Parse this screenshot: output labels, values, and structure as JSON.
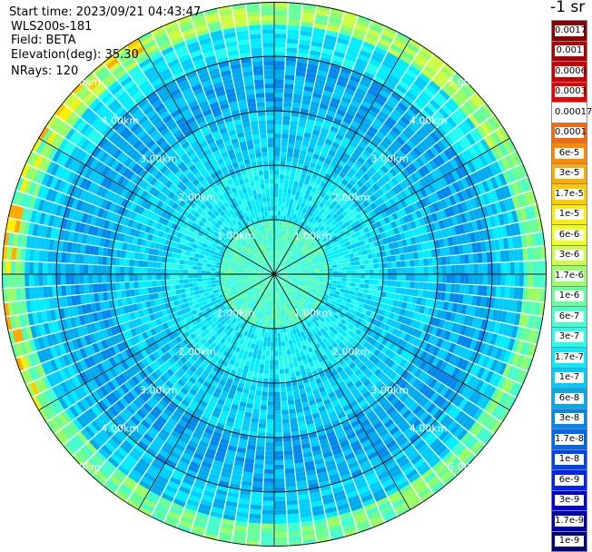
{
  "header": {
    "start_time": "Start time: 2023/09/21 04:43:47",
    "device": "WLS200s-181",
    "field": "Field: BETA",
    "elevation": "Elevation(deg): 35.30",
    "nrays": "NRays: 120"
  },
  "colorbar": {
    "unit": "-1 sr",
    "labels": [
      "0.0017",
      "0.001",
      "0.0006",
      "0.0003",
      "0.00017",
      "0.0001",
      "6e-5",
      "3e-5",
      "1.7e-5",
      "1e-5",
      "6e-6",
      "3e-6",
      "1.7e-6",
      "1e-6",
      "6e-7",
      "3e-7",
      "1.7e-7",
      "1e-7",
      "6e-8",
      "3e-8",
      "1.7e-8",
      "1e-8",
      "6e-9",
      "3e-9",
      "1.7e-9",
      "1e-9"
    ],
    "colors": [
      "#880000",
      "#aa0000",
      "#cc0000",
      "#ee0000",
      "#ffffff",
      "#ff6600",
      "#ff8800",
      "#ffaa00",
      "#ffcc00",
      "#ffee00",
      "#eeff22",
      "#ccff44",
      "#99ff66",
      "#66ff99",
      "#44ffcc",
      "#22ffee",
      "#00eeff",
      "#00ccff",
      "#00aaee",
      "#0088ee",
      "#0066ee",
      "#0044ee",
      "#0022ee",
      "#0000dd",
      "#0000aa",
      "#000077"
    ]
  },
  "chart_data": {
    "type": "heatmap",
    "projection": "polar-ppi",
    "field": "BETA",
    "nrays": 120,
    "max_range_km": 5.0,
    "range_ring_labels": [
      "1.00km",
      "2.00km",
      "3.00km",
      "4.00km",
      "5.00km"
    ],
    "azimuth_spokes_deg": [
      0,
      30,
      60,
      90,
      120,
      150,
      180,
      210,
      240,
      270,
      300,
      330
    ],
    "field_bands": [
      {
        "range_km": [
          0.0,
          1.0
        ],
        "dominant_level": "6e-7"
      },
      {
        "range_km": [
          1.0,
          2.0
        ],
        "dominant_level": "1.7e-7"
      },
      {
        "range_km": [
          2.0,
          3.0
        ],
        "dominant_level": "1e-7"
      },
      {
        "range_km": [
          3.0,
          4.0
        ],
        "dominant_level": "6e-8"
      },
      {
        "range_km": [
          4.0,
          4.6
        ],
        "dominant_level": "1e-7"
      },
      {
        "range_km": [
          4.6,
          5.0
        ],
        "dominant_level": "1e-6"
      }
    ]
  }
}
